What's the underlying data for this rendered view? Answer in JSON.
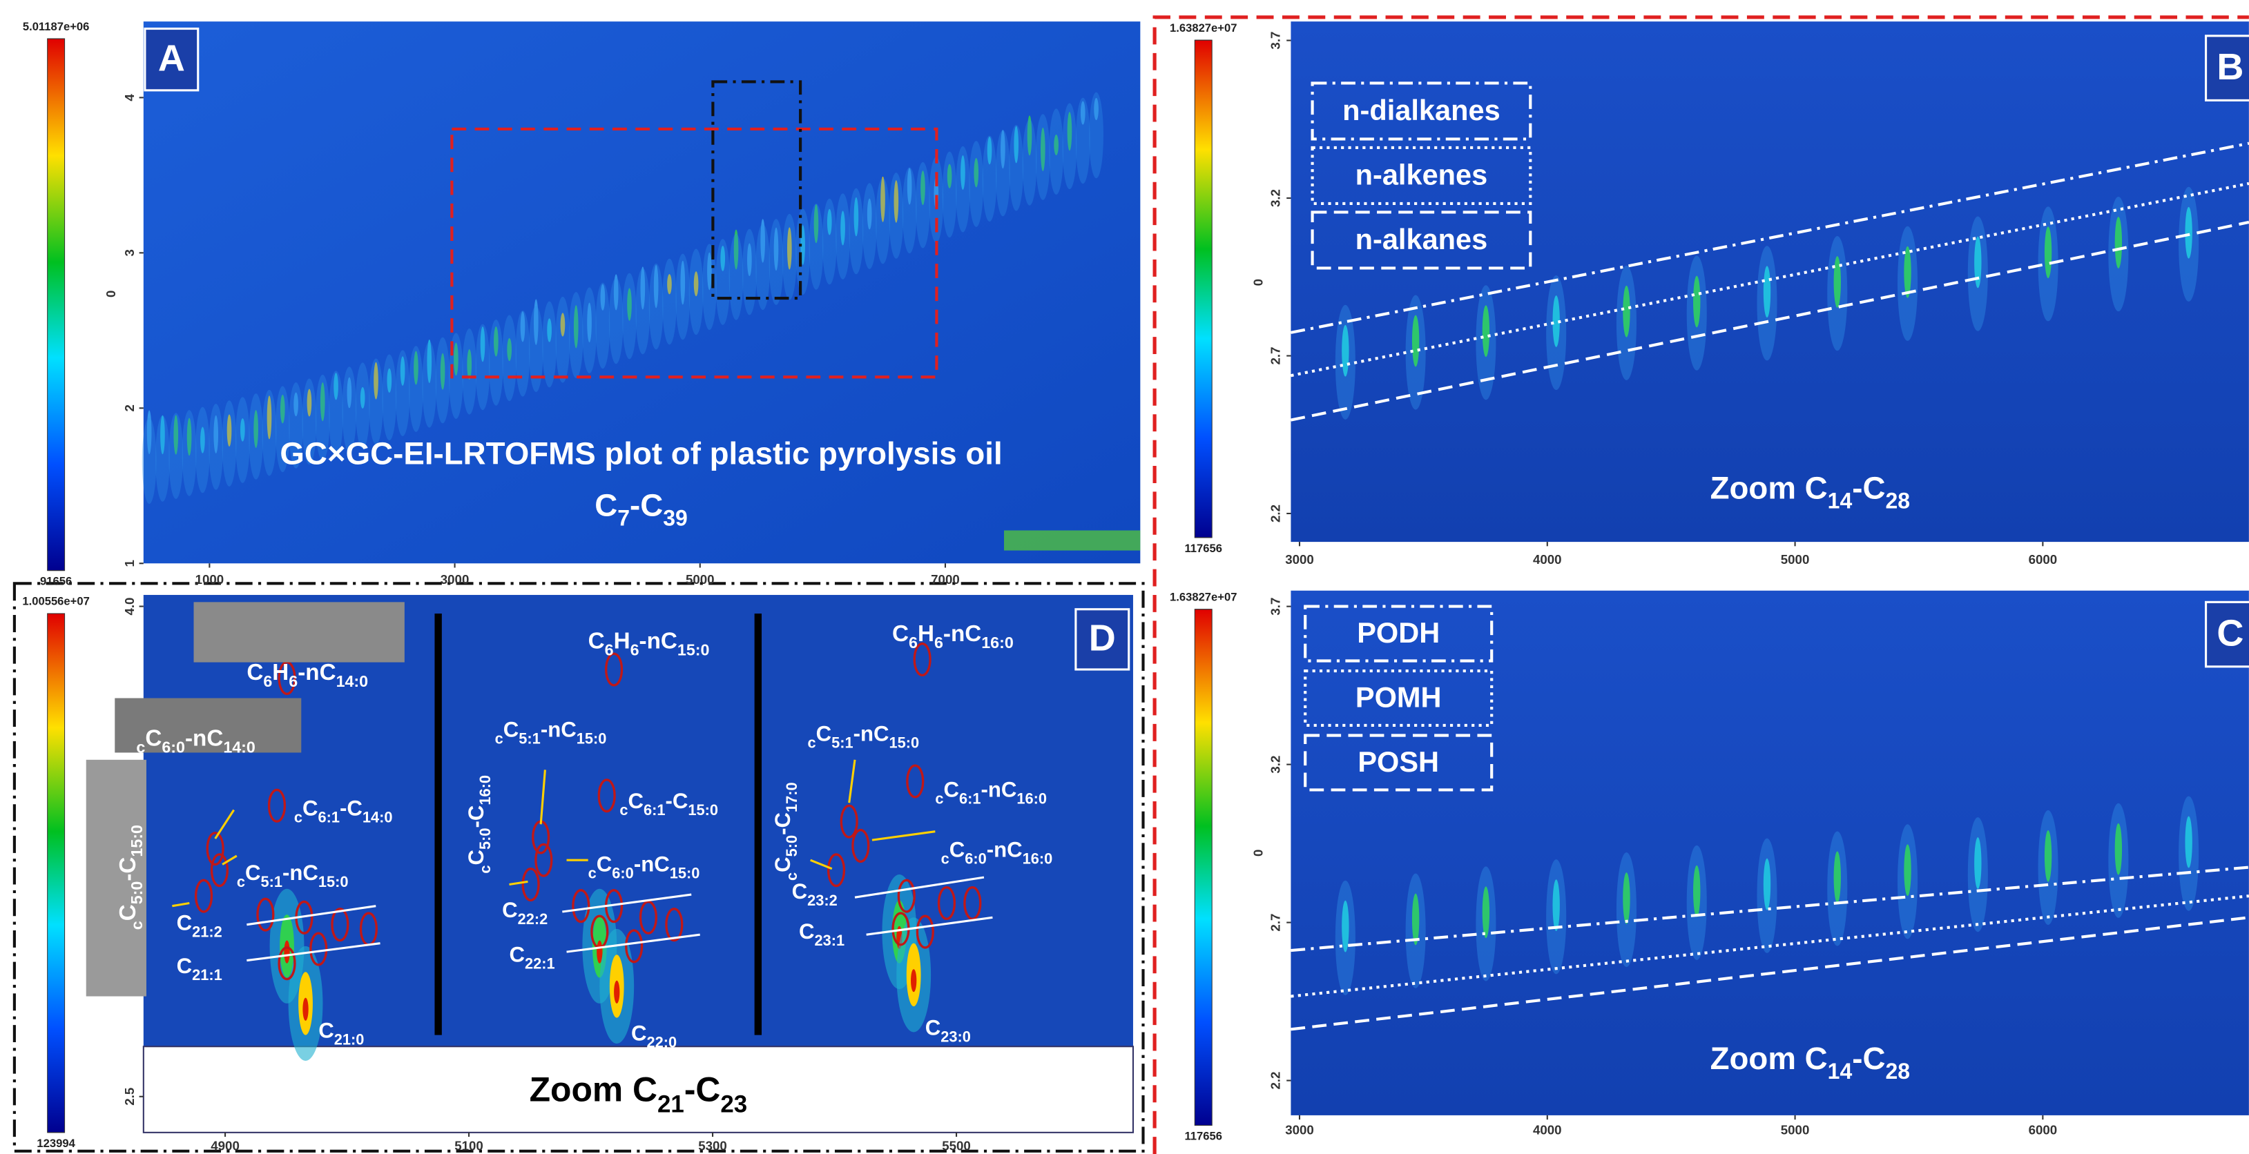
{
  "chart_data": [
    {
      "type": "heatmap",
      "panel_label": "A",
      "ylabel": "0",
      "xlim": [
        462,
        8590
      ],
      "xticks": [
        1000,
        3000,
        5000,
        7000
      ],
      "ylim": [
        1,
        4.49
      ],
      "yticks": [
        1,
        2,
        3,
        4
      ],
      "clim": [
        91656,
        5011870
      ],
      "cticks": [
        91656,
        {
          "value": 5011870,
          "label": "5.01187e+06"
        }
      ],
      "annotations": [
        [
          "GC×GC-EI-LRTOFMS plot of plastic pyrolysis oil"
        ],
        [
          "C",
          [
            "7"
          ],
          "-C",
          [
            "39"
          ]
        ]
      ]
    },
    {
      "type": "heatmap",
      "panel_label": "B",
      "ylabel": "0",
      "xlim": [
        2965,
        6832
      ],
      "xticks": [
        3000,
        4000,
        5000,
        6000
      ],
      "ylim": [
        2.11,
        3.76
      ],
      "yticks": [
        2.2,
        2.7,
        3.2,
        3.7
      ],
      "clim": [
        117656,
        16382700
      ],
      "cticks": [
        117656,
        {
          "value": 16382700,
          "label": "1.63827e+07"
        }
      ],
      "legend": [
        "n-dialkanes",
        "n-alkenes",
        "n-alkanes"
      ],
      "annotations": [
        [
          "Zoom C",
          [
            "14"
          ],
          "-C",
          [
            "28"
          ]
        ]
      ]
    },
    {
      "type": "heatmap",
      "panel_label": "C",
      "ylabel": "0",
      "xlim": [
        2965,
        6832
      ],
      "xticks": [
        3000,
        4000,
        5000,
        6000
      ],
      "ylim": [
        2.09,
        3.75
      ],
      "yticks": [
        2.2,
        2.7,
        3.2,
        3.7
      ],
      "clim": [
        117656,
        16382700
      ],
      "cticks": [
        117656,
        {
          "value": 16382700,
          "label": "1.63827e+07"
        }
      ],
      "legend": [
        "PODH",
        "POMH",
        "POSH"
      ],
      "annotations": [
        [
          "Zoom C",
          [
            "14"
          ],
          "-C",
          [
            "28"
          ]
        ]
      ]
    },
    {
      "type": "heatmap",
      "panel_label": "D",
      "xlim": [
        4833,
        5645
      ],
      "xticks": [
        4900,
        5100,
        5300,
        5500
      ],
      "ylim": [
        2.39,
        4.035
      ],
      "yticks": [
        2.5,
        {
          "value": 4,
          "label": "4.0"
        }
      ],
      "clim": [
        123994,
        10055600
      ],
      "cticks": [
        123994,
        {
          "value": 10055600,
          "label": "1.00556e+07"
        }
      ],
      "annotations": [
        [
          "Zoom C",
          [
            "21"
          ],
          "-C",
          [
            "23"
          ]
        ],
        [
          "C",
          [
            "6"
          ],
          "H",
          [
            "6"
          ],
          "-nC",
          [
            "14:0"
          ]
        ],
        [
          [
            "c"
          ],
          "C",
          [
            "6:0"
          ],
          "-nC",
          [
            "14:0"
          ]
        ],
        [
          [
            "c"
          ],
          "C",
          [
            "5:0"
          ],
          "-C",
          [
            "15:0"
          ]
        ],
        [
          [
            "c"
          ],
          "C",
          [
            "6:1"
          ],
          "-C",
          [
            "14:0"
          ]
        ],
        [
          [
            "c"
          ],
          "C",
          [
            "5:1"
          ],
          "-nC",
          [
            "15:0"
          ]
        ],
        [
          "C",
          [
            "21:2"
          ]
        ],
        [
          "C",
          [
            "21:1"
          ]
        ],
        [
          "C",
          [
            "21:0"
          ]
        ],
        [
          "C",
          [
            "6"
          ],
          "H",
          [
            "6"
          ],
          "-nC",
          [
            "15:0"
          ]
        ],
        [
          [
            "c"
          ],
          "C",
          [
            "5:1"
          ],
          "-nC",
          [
            "15:0"
          ]
        ],
        [
          [
            "c"
          ],
          "C",
          [
            "5:0"
          ],
          "-C",
          [
            "16:0"
          ]
        ],
        [
          [
            "c"
          ],
          "C",
          [
            "6:1"
          ],
          "-C",
          [
            "15:0"
          ]
        ],
        [
          [
            "c"
          ],
          "C",
          [
            "6:0"
          ],
          "-nC",
          [
            "15:0"
          ]
        ],
        [
          "C",
          [
            "22:2"
          ]
        ],
        [
          "C",
          [
            "22:1"
          ]
        ],
        [
          "C",
          [
            "22:0"
          ]
        ],
        [
          "C",
          [
            "6"
          ],
          "H",
          [
            "6"
          ],
          "-nC",
          [
            "16:0"
          ]
        ],
        [
          [
            "c"
          ],
          "C",
          [
            "5:1"
          ],
          "-nC",
          [
            "15:0"
          ]
        ],
        [
          [
            "c"
          ],
          "C",
          [
            "5:0"
          ],
          "-C",
          [
            "17:0"
          ]
        ],
        [
          [
            "c"
          ],
          "C",
          [
            "6:1"
          ],
          "-nC",
          [
            "16:0"
          ]
        ],
        [
          [
            "c"
          ],
          "C",
          [
            "6:0"
          ],
          "-nC",
          [
            "16:0"
          ]
        ],
        [
          "C",
          [
            "23:2"
          ]
        ],
        [
          "C",
          [
            "23:1"
          ]
        ],
        [
          "C",
          [
            "23:0"
          ]
        ]
      ]
    }
  ]
}
